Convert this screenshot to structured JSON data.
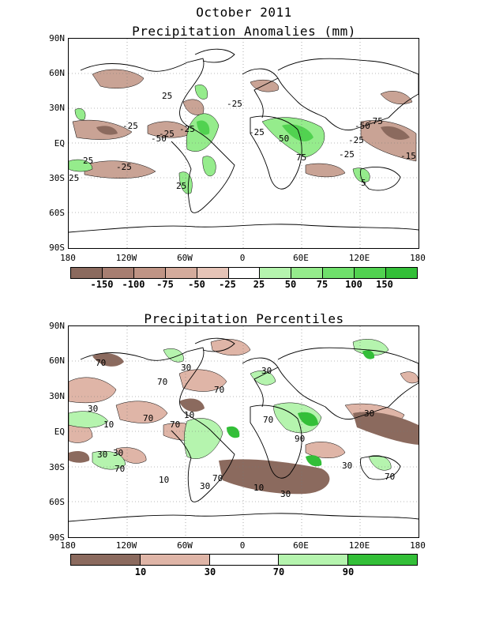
{
  "header": {
    "title": "October 2011"
  },
  "panels": [
    {
      "title": "Precipitation Anomalies (mm)",
      "y_ticks": [
        "90N",
        "60N",
        "30N",
        "EQ",
        "30S",
        "60S",
        "90S"
      ],
      "x_ticks": [
        "180",
        "120W",
        "60W",
        "0",
        "60E",
        "120E",
        "180"
      ],
      "colorbar": {
        "colors": [
          "#8b6a5e",
          "#a77e71",
          "#bf9485",
          "#d4ab9c",
          "#e6c4b7",
          "#ffffff",
          "#b5f4ae",
          "#95ec8c",
          "#6fe06b",
          "#51d250",
          "#33bf38"
        ],
        "labels": [
          "-150",
          "-100",
          "-75",
          "-50",
          "-25",
          "25",
          "50",
          "75",
          "100",
          "150"
        ]
      },
      "contour_labels": [
        "25",
        "-25",
        "-25",
        "-25",
        "-50",
        "-25",
        "-25",
        "-50",
        "-75",
        "-25",
        "-25",
        "-15",
        "50",
        "75",
        "25",
        "-25",
        "25",
        "25",
        "5"
      ]
    },
    {
      "title": "Precipitation Percentiles",
      "y_ticks": [
        "90N",
        "60N",
        "30N",
        "EQ",
        "30S",
        "60S",
        "90S"
      ],
      "x_ticks": [
        "180",
        "120W",
        "60W",
        "0",
        "60E",
        "120E",
        "180"
      ],
      "colorbar": {
        "colors": [
          "#8b6a5e",
          "#dfb5a7",
          "#ffffff",
          "#b5f4ae",
          "#33bf38"
        ],
        "labels": [
          "10",
          "30",
          "70",
          "90"
        ]
      },
      "contour_labels": [
        "70",
        "30",
        "70",
        "30",
        "70",
        "30",
        "10",
        "70",
        "10",
        "70",
        "70",
        "90",
        "30",
        "30",
        "70",
        "30",
        "10",
        "30",
        "10",
        "70",
        "30",
        "30",
        "70"
      ]
    }
  ]
}
